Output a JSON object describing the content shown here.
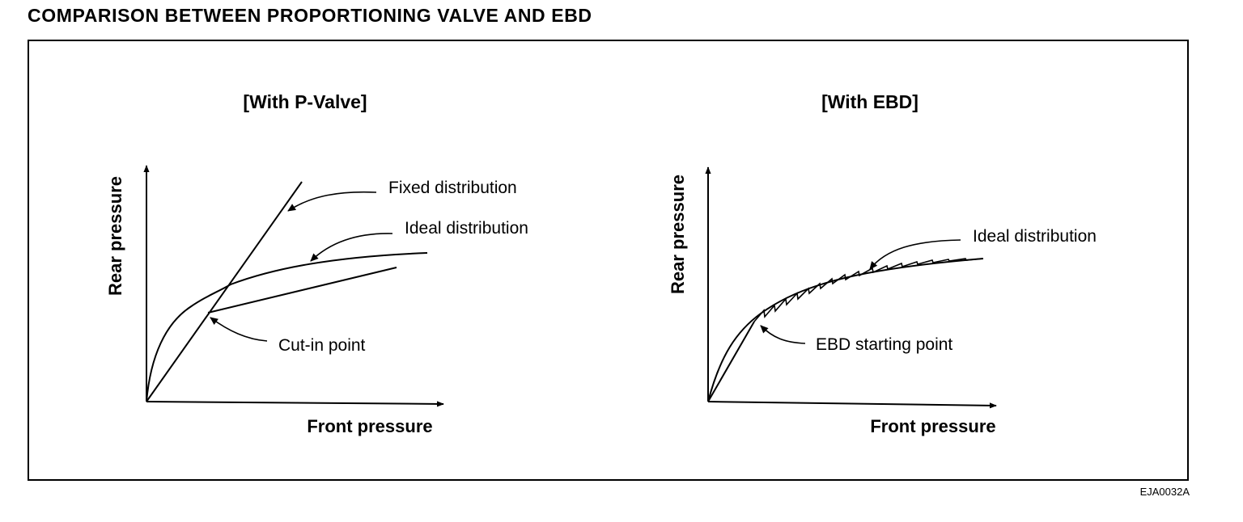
{
  "title": "COMPARISON BETWEEN PROPORTIONING VALVE AND EBD",
  "figure_code": "EJA0032A",
  "left_panel": {
    "heading": "[With P-Valve]",
    "y_axis_label": "Rear pressure",
    "x_axis_label": "Front pressure",
    "callouts": {
      "fixed": "Fixed distribution",
      "ideal": "Ideal distribution",
      "cutin": "Cut-in point"
    }
  },
  "right_panel": {
    "heading": "[With EBD]",
    "y_axis_label": "Rear pressure",
    "x_axis_label": "Front pressure",
    "callouts": {
      "ideal": "Ideal distribution",
      "start": "EBD starting point"
    }
  },
  "colors": {
    "ink": "#000000",
    "paper": "#ffffff"
  }
}
